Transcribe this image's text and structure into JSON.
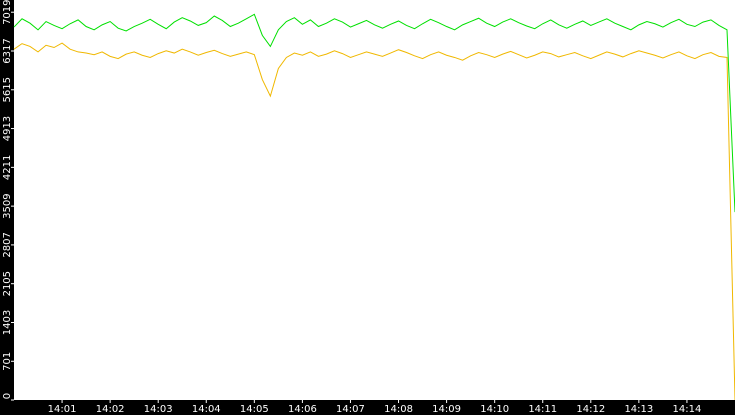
{
  "chart_data": {
    "type": "line",
    "categories": [
      null,
      null,
      null,
      null,
      null,
      null,
      "14:01",
      null,
      null,
      null,
      null,
      null,
      "14:02",
      null,
      null,
      null,
      null,
      null,
      "14:03",
      null,
      null,
      null,
      null,
      null,
      "14:04",
      null,
      null,
      null,
      null,
      null,
      "14:05",
      null,
      null,
      null,
      null,
      null,
      "14:06",
      null,
      null,
      null,
      null,
      null,
      "14:07",
      null,
      null,
      null,
      null,
      null,
      "14:08",
      null,
      null,
      null,
      null,
      null,
      "14:09",
      null,
      null,
      null,
      null,
      null,
      "14:10",
      null,
      null,
      null,
      null,
      null,
      "14:11",
      null,
      null,
      null,
      null,
      null,
      "14:12",
      null,
      null,
      null,
      null,
      null,
      "14:13",
      null,
      null,
      null,
      null,
      null,
      "14:14",
      null,
      null,
      null,
      null,
      null,
      null
    ],
    "series": [
      {
        "color": "#00e000",
        "values": [
          6750,
          6900,
          6820,
          6700,
          6850,
          6780,
          6720,
          6810,
          6880,
          6760,
          6700,
          6790,
          6850,
          6730,
          6680,
          6760,
          6820,
          6890,
          6800,
          6720,
          6840,
          6920,
          6860,
          6780,
          6830,
          6950,
          6870,
          6760,
          6820,
          6900,
          6980,
          6600,
          6400,
          6700,
          6850,
          6920,
          6800,
          6880,
          6760,
          6820,
          6900,
          6840,
          6750,
          6810,
          6870,
          6790,
          6730,
          6800,
          6860,
          6780,
          6720,
          6810,
          6890,
          6830,
          6760,
          6700,
          6790,
          6850,
          6910,
          6820,
          6760,
          6840,
          6900,
          6830,
          6770,
          6720,
          6810,
          6880,
          6790,
          6730,
          6800,
          6860,
          6780,
          6840,
          6900,
          6820,
          6760,
          6700,
          6790,
          6850,
          6810,
          6750,
          6830,
          6890,
          6800,
          6760,
          6840,
          6880,
          6780,
          6700,
          3400
        ]
      },
      {
        "color": "#f0b800",
        "values": [
          6350,
          6450,
          6400,
          6300,
          6420,
          6380,
          6460,
          6350,
          6300,
          6280,
          6250,
          6300,
          6220,
          6180,
          6260,
          6300,
          6240,
          6200,
          6270,
          6320,
          6280,
          6350,
          6300,
          6240,
          6290,
          6330,
          6270,
          6220,
          6260,
          6300,
          6250,
          5800,
          5500,
          6000,
          6200,
          6280,
          6240,
          6300,
          6220,
          6260,
          6320,
          6270,
          6200,
          6250,
          6300,
          6260,
          6220,
          6280,
          6340,
          6290,
          6230,
          6180,
          6250,
          6300,
          6240,
          6200,
          6150,
          6230,
          6290,
          6250,
          6200,
          6260,
          6310,
          6250,
          6190,
          6240,
          6300,
          6270,
          6210,
          6250,
          6290,
          6230,
          6180,
          6240,
          6300,
          6260,
          6210,
          6270,
          6320,
          6280,
          6240,
          6190,
          6250,
          6300,
          6230,
          6180,
          6250,
          6290,
          6220,
          6200,
          0
        ]
      }
    ],
    "ylim": [
      0,
      7240
    ],
    "yticks": [
      0,
      701,
      1403,
      2105,
      2807,
      3509,
      4211,
      4913,
      5615,
      6317,
      7019
    ]
  }
}
